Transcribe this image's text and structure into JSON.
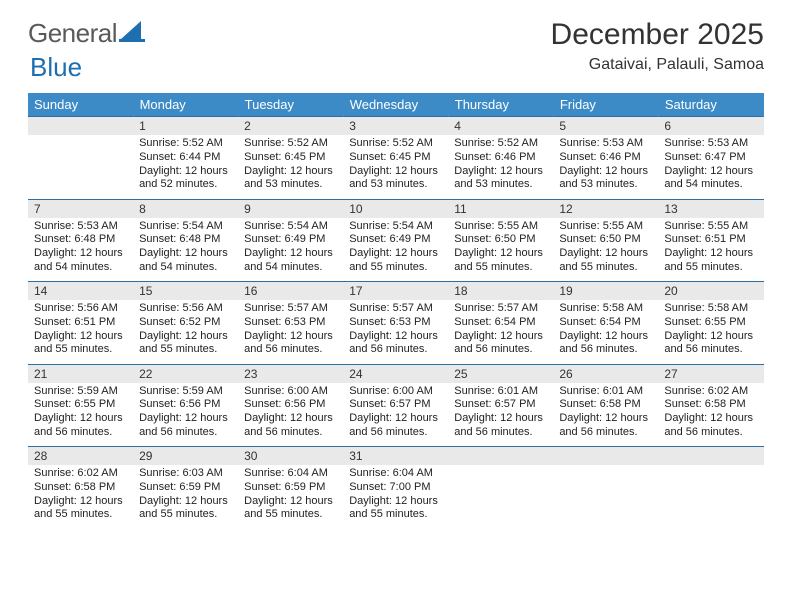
{
  "brand": {
    "word1": "General",
    "word2": "Blue",
    "word1_color": "#5a5a5a",
    "word2_color": "#1e6fb0",
    "sail_color": "#1e6fb0"
  },
  "header": {
    "month_title": "December 2025",
    "location": "Gataivai, Palauli, Samoa"
  },
  "style": {
    "header_bg": "#3c8bc7",
    "daynum_bg": "#e9e9e9",
    "rule_color": "#2f6fa0",
    "body_font_size": 11,
    "title_font_size": 30,
    "location_font_size": 16
  },
  "calendar": {
    "type": "table",
    "days_of_week": [
      "Sunday",
      "Monday",
      "Tuesday",
      "Wednesday",
      "Thursday",
      "Friday",
      "Saturday"
    ],
    "line_labels": {
      "sunrise": "Sunrise:",
      "sunset": "Sunset:",
      "daylight": "Daylight:"
    },
    "weeks": [
      [
        null,
        {
          "n": "1",
          "sr": "5:52 AM",
          "ss": "6:44 PM",
          "dl": "12 hours and 52 minutes."
        },
        {
          "n": "2",
          "sr": "5:52 AM",
          "ss": "6:45 PM",
          "dl": "12 hours and 53 minutes."
        },
        {
          "n": "3",
          "sr": "5:52 AM",
          "ss": "6:45 PM",
          "dl": "12 hours and 53 minutes."
        },
        {
          "n": "4",
          "sr": "5:52 AM",
          "ss": "6:46 PM",
          "dl": "12 hours and 53 minutes."
        },
        {
          "n": "5",
          "sr": "5:53 AM",
          "ss": "6:46 PM",
          "dl": "12 hours and 53 minutes."
        },
        {
          "n": "6",
          "sr": "5:53 AM",
          "ss": "6:47 PM",
          "dl": "12 hours and 54 minutes."
        }
      ],
      [
        {
          "n": "7",
          "sr": "5:53 AM",
          "ss": "6:48 PM",
          "dl": "12 hours and 54 minutes."
        },
        {
          "n": "8",
          "sr": "5:54 AM",
          "ss": "6:48 PM",
          "dl": "12 hours and 54 minutes."
        },
        {
          "n": "9",
          "sr": "5:54 AM",
          "ss": "6:49 PM",
          "dl": "12 hours and 54 minutes."
        },
        {
          "n": "10",
          "sr": "5:54 AM",
          "ss": "6:49 PM",
          "dl": "12 hours and 55 minutes."
        },
        {
          "n": "11",
          "sr": "5:55 AM",
          "ss": "6:50 PM",
          "dl": "12 hours and 55 minutes."
        },
        {
          "n": "12",
          "sr": "5:55 AM",
          "ss": "6:50 PM",
          "dl": "12 hours and 55 minutes."
        },
        {
          "n": "13",
          "sr": "5:55 AM",
          "ss": "6:51 PM",
          "dl": "12 hours and 55 minutes."
        }
      ],
      [
        {
          "n": "14",
          "sr": "5:56 AM",
          "ss": "6:51 PM",
          "dl": "12 hours and 55 minutes."
        },
        {
          "n": "15",
          "sr": "5:56 AM",
          "ss": "6:52 PM",
          "dl": "12 hours and 55 minutes."
        },
        {
          "n": "16",
          "sr": "5:57 AM",
          "ss": "6:53 PM",
          "dl": "12 hours and 56 minutes."
        },
        {
          "n": "17",
          "sr": "5:57 AM",
          "ss": "6:53 PM",
          "dl": "12 hours and 56 minutes."
        },
        {
          "n": "18",
          "sr": "5:57 AM",
          "ss": "6:54 PM",
          "dl": "12 hours and 56 minutes."
        },
        {
          "n": "19",
          "sr": "5:58 AM",
          "ss": "6:54 PM",
          "dl": "12 hours and 56 minutes."
        },
        {
          "n": "20",
          "sr": "5:58 AM",
          "ss": "6:55 PM",
          "dl": "12 hours and 56 minutes."
        }
      ],
      [
        {
          "n": "21",
          "sr": "5:59 AM",
          "ss": "6:55 PM",
          "dl": "12 hours and 56 minutes."
        },
        {
          "n": "22",
          "sr": "5:59 AM",
          "ss": "6:56 PM",
          "dl": "12 hours and 56 minutes."
        },
        {
          "n": "23",
          "sr": "6:00 AM",
          "ss": "6:56 PM",
          "dl": "12 hours and 56 minutes."
        },
        {
          "n": "24",
          "sr": "6:00 AM",
          "ss": "6:57 PM",
          "dl": "12 hours and 56 minutes."
        },
        {
          "n": "25",
          "sr": "6:01 AM",
          "ss": "6:57 PM",
          "dl": "12 hours and 56 minutes."
        },
        {
          "n": "26",
          "sr": "6:01 AM",
          "ss": "6:58 PM",
          "dl": "12 hours and 56 minutes."
        },
        {
          "n": "27",
          "sr": "6:02 AM",
          "ss": "6:58 PM",
          "dl": "12 hours and 56 minutes."
        }
      ],
      [
        {
          "n": "28",
          "sr": "6:02 AM",
          "ss": "6:58 PM",
          "dl": "12 hours and 55 minutes."
        },
        {
          "n": "29",
          "sr": "6:03 AM",
          "ss": "6:59 PM",
          "dl": "12 hours and 55 minutes."
        },
        {
          "n": "30",
          "sr": "6:04 AM",
          "ss": "6:59 PM",
          "dl": "12 hours and 55 minutes."
        },
        {
          "n": "31",
          "sr": "6:04 AM",
          "ss": "7:00 PM",
          "dl": "12 hours and 55 minutes."
        },
        null,
        null,
        null
      ]
    ]
  }
}
